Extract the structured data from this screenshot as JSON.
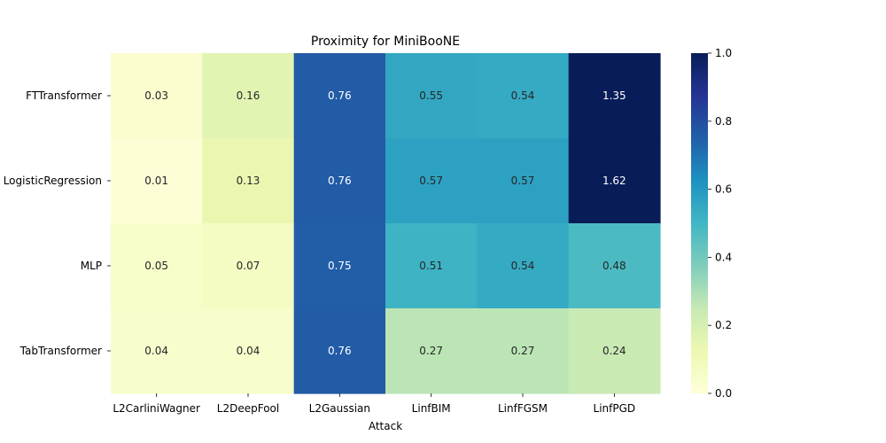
{
  "chart_data": {
    "type": "heatmap",
    "title": "Proximity for MiniBooNE",
    "xlabel": "Attack",
    "ylabel": "",
    "x_categories": [
      "L2CarliniWagner",
      "L2DeepFool",
      "L2Gaussian",
      "LinfBIM",
      "LinfFGSM",
      "LinfPGD"
    ],
    "y_categories": [
      "FTTransformer",
      "LogisticRegression",
      "MLP",
      "TabTransformer"
    ],
    "values": [
      [
        0.03,
        0.16,
        0.76,
        0.55,
        0.54,
        1.35
      ],
      [
        0.01,
        0.13,
        0.76,
        0.57,
        0.57,
        1.62
      ],
      [
        0.05,
        0.07,
        0.75,
        0.51,
        0.54,
        0.48
      ],
      [
        0.04,
        0.04,
        0.76,
        0.27,
        0.27,
        0.24
      ]
    ],
    "value_labels": [
      [
        "0.03",
        "0.16",
        "0.76",
        "0.55",
        "0.54",
        "1.35"
      ],
      [
        "0.01",
        "0.13",
        "0.76",
        "0.57",
        "0.57",
        "1.62"
      ],
      [
        "0.05",
        "0.07",
        "0.75",
        "0.51",
        "0.54",
        "0.48"
      ],
      [
        "0.04",
        "0.04",
        "0.76",
        "0.27",
        "0.27",
        "0.24"
      ]
    ],
    "colorbar": {
      "min": 0.0,
      "max": 1.0,
      "ticks": [
        "0.0",
        "0.2",
        "0.4",
        "0.6",
        "0.8",
        "1.0"
      ],
      "colormap": "YlGnBu"
    }
  }
}
